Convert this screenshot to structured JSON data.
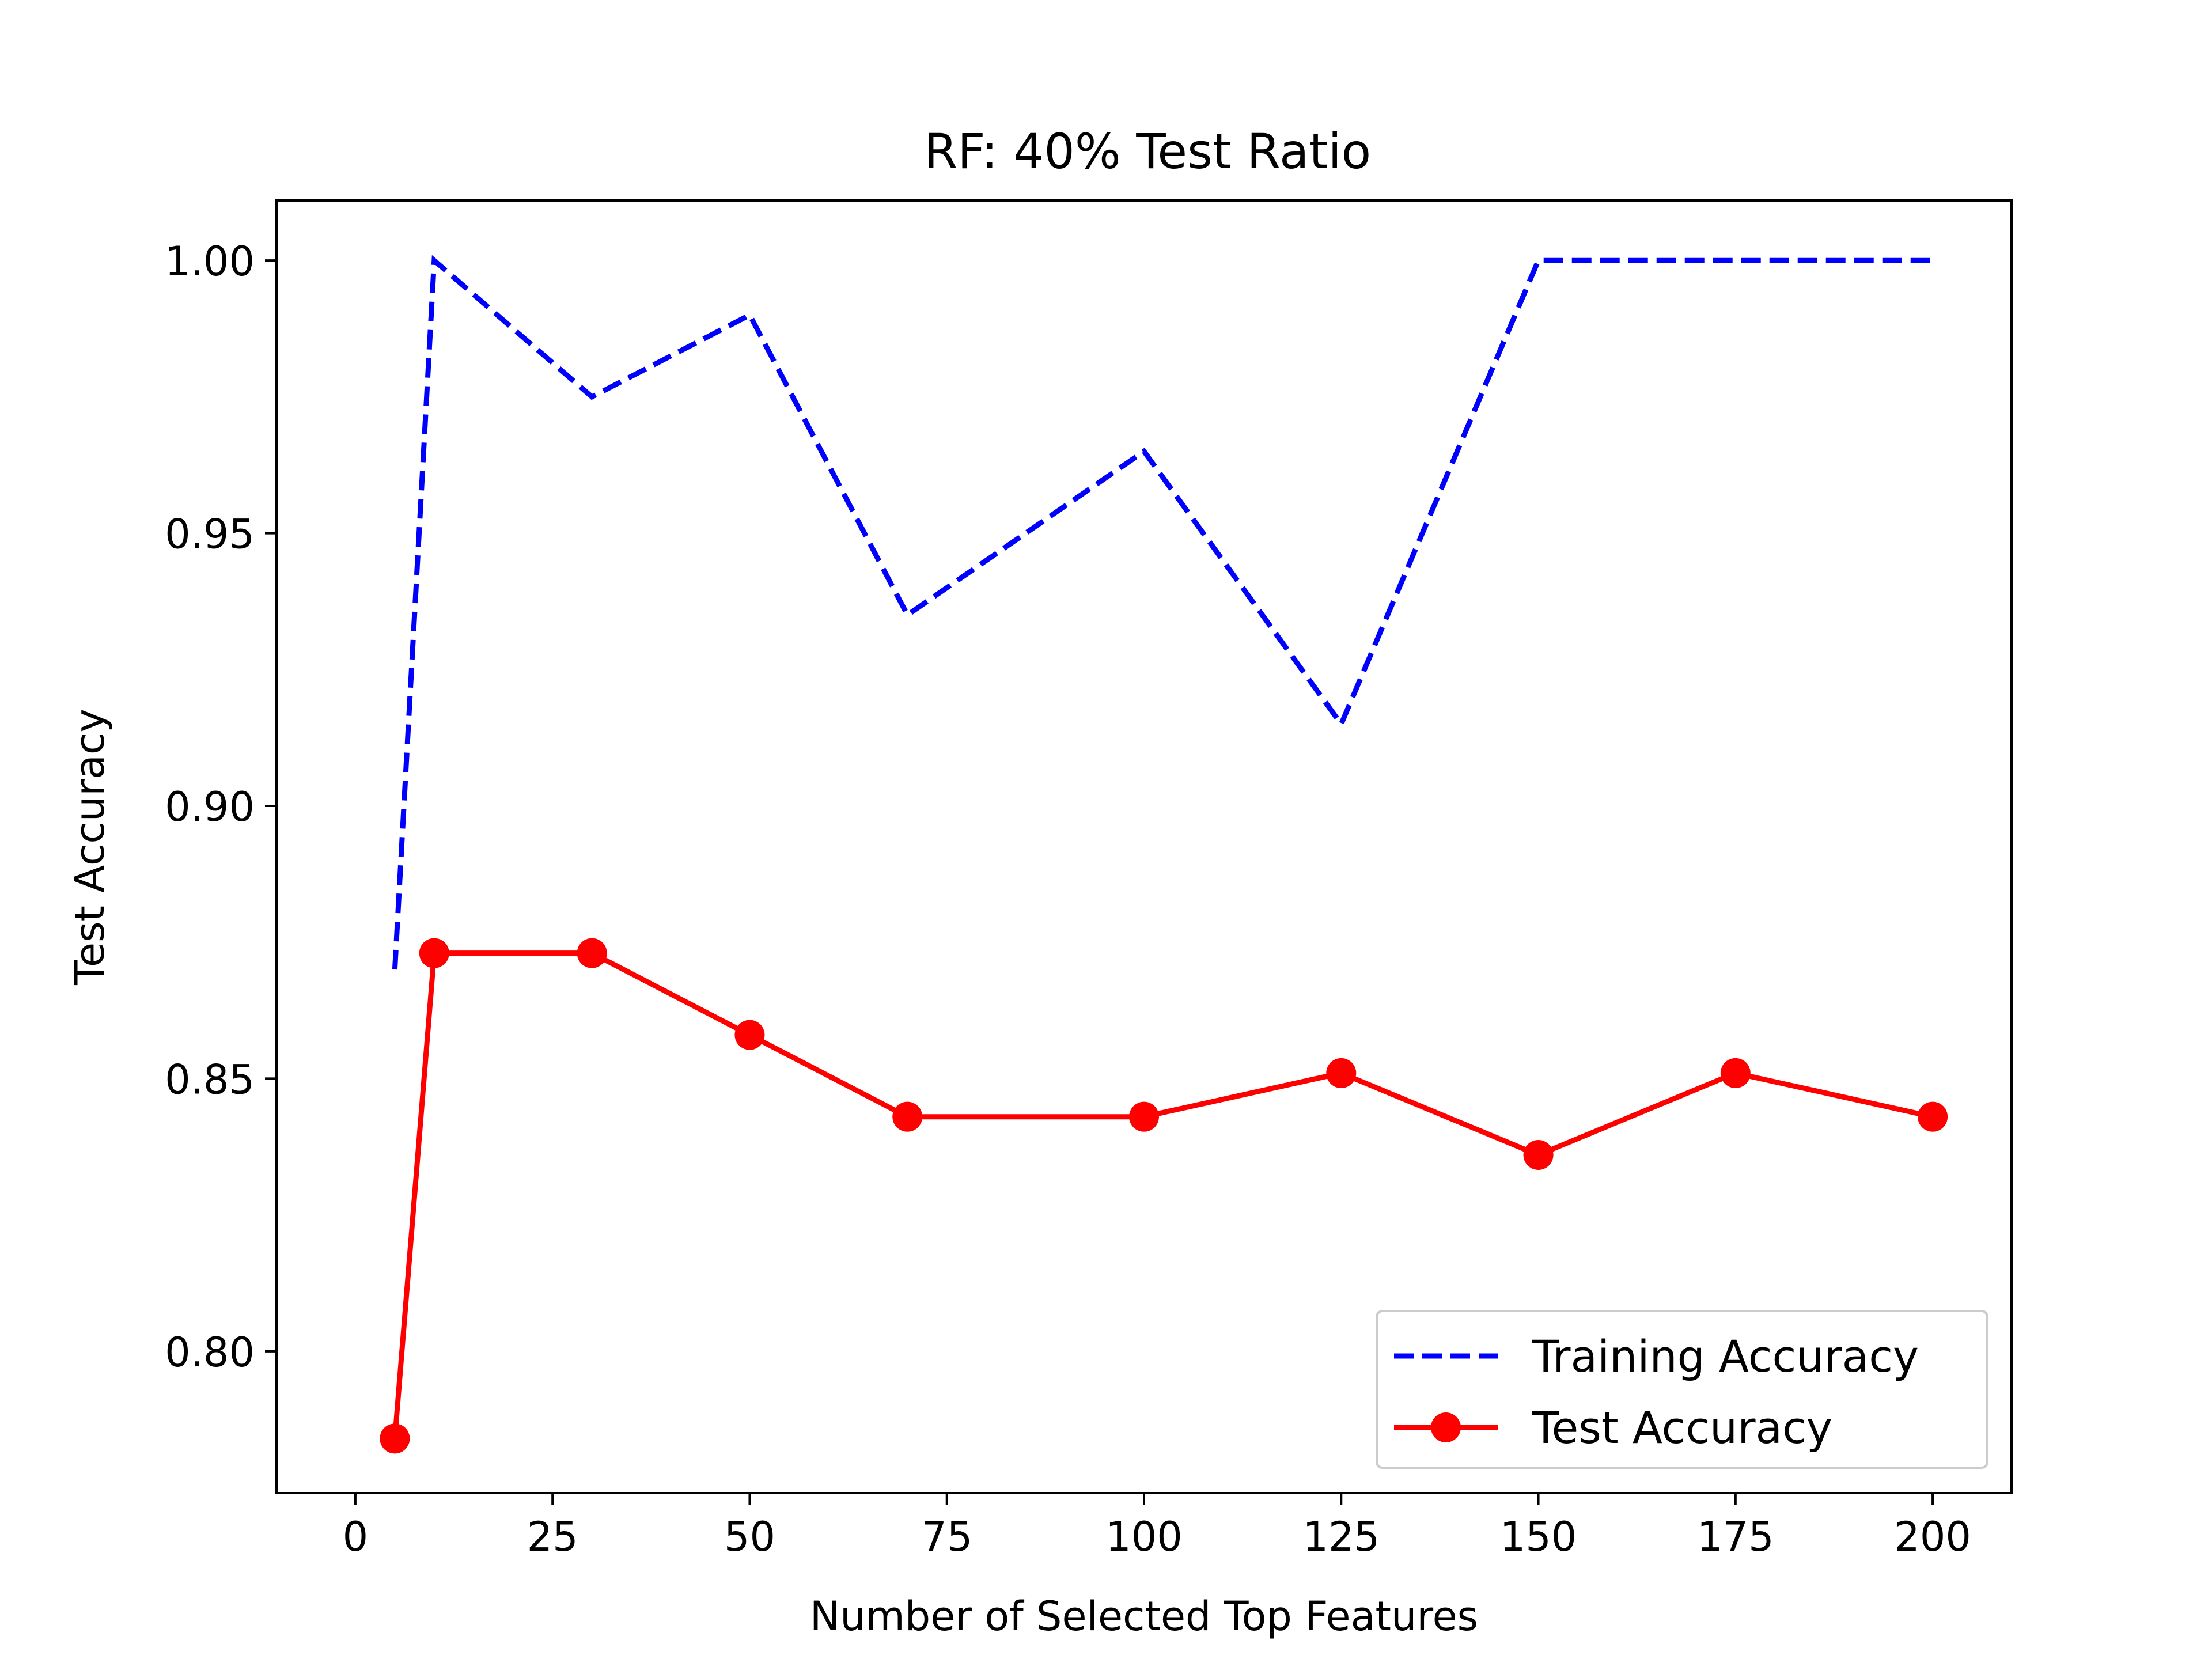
{
  "chart_data": {
    "type": "line",
    "title": "RF: 40% Test Ratio",
    "xlabel": "Number of Selected Top Features",
    "ylabel": "Test Accuracy",
    "xlim": [
      -10,
      210
    ],
    "ylim": [
      0.774,
      1.011
    ],
    "xticks": [
      0,
      25,
      50,
      75,
      100,
      125,
      150,
      175,
      200
    ],
    "yticks": [
      0.8,
      0.85,
      0.9,
      0.95,
      1.0
    ],
    "xtick_labels": [
      "0",
      "25",
      "50",
      "75",
      "100",
      "125",
      "150",
      "175",
      "200"
    ],
    "ytick_labels": [
      "0.80",
      "0.85",
      "0.90",
      "0.95",
      "1.00"
    ],
    "grid": false,
    "legend_position": "lower-right",
    "series": [
      {
        "name": "Training Accuracy",
        "color": "#0000ff",
        "style": "dashed",
        "marker": "none",
        "x": [
          5,
          10,
          30,
          50,
          70,
          100,
          125,
          150,
          175,
          200
        ],
        "y": [
          0.87,
          1.0,
          0.975,
          0.99,
          0.935,
          0.965,
          0.915,
          1.0,
          1.0,
          1.0
        ]
      },
      {
        "name": "Test Accuracy",
        "color": "#ff0000",
        "style": "solid",
        "marker": "circle",
        "x": [
          5,
          10,
          30,
          50,
          70,
          100,
          125,
          150,
          175,
          200
        ],
        "y": [
          0.784,
          0.873,
          0.873,
          0.858,
          0.843,
          0.843,
          0.851,
          0.836,
          0.851,
          0.843
        ]
      }
    ]
  }
}
